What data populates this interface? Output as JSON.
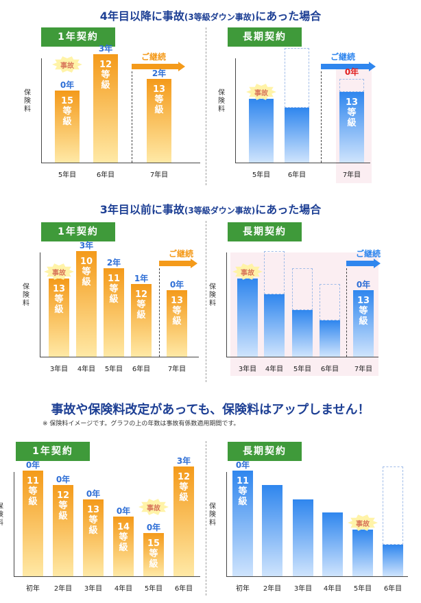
{
  "sections": [
    {
      "title_main": "4年目以降に事故",
      "title_sub": "(3等級ダウン事故)",
      "title_end": "にあった場合",
      "left": {
        "label": "1年契約",
        "ylabel": [
          "保",
          "険",
          "料"
        ],
        "continue_label": "ご継続",
        "x": [
          "5年目",
          "6年目",
          "7年目"
        ],
        "bars": [
          {
            "x": "5年目",
            "value": 0.55,
            "grade": [
              "15",
              "等",
              "級"
            ],
            "years": "0年",
            "accident": true
          },
          {
            "x": "6年目",
            "value": 0.83,
            "grade": [
              "12",
              "等",
              "級"
            ],
            "years": "3年"
          },
          {
            "x": "7年目",
            "value": 0.64,
            "grade": [
              "13",
              "等",
              "級"
            ],
            "years": "2年"
          }
        ]
      },
      "right": {
        "label": "長期契約",
        "ylabel": [
          "保",
          "険",
          "料"
        ],
        "continue_label": "ご継続",
        "x": [
          "5年目",
          "6年目",
          "7年目"
        ],
        "bars": [
          {
            "x": "5年目",
            "value": 0.49,
            "accident": true
          },
          {
            "x": "6年目",
            "value": 0.42,
            "box": 0.88
          },
          {
            "x": "7年目",
            "value": 0.54,
            "box": 0.64,
            "grade": [
              "13",
              "等",
              "級"
            ],
            "years": "0年",
            "years_red": true
          }
        ]
      }
    },
    {
      "title_main": "3年目以前に事故",
      "title_sub": "(3等級ダウン事故)",
      "title_end": "にあった場合",
      "left": {
        "label": "1年契約",
        "ylabel": [
          "保",
          "険",
          "料"
        ],
        "continue_label": "ご継続",
        "x": [
          "3年目",
          "4年目",
          "5年目",
          "6年目",
          "7年目"
        ],
        "bars": [
          {
            "x": "3年目",
            "value": 0.6,
            "grade": [
              "13",
              "等",
              "級"
            ],
            "accident": true
          },
          {
            "x": "4年目",
            "value": 0.81,
            "grade": [
              "10",
              "等",
              "級"
            ],
            "years": "3年"
          },
          {
            "x": "5年目",
            "value": 0.68,
            "grade": [
              "11",
              "等",
              "級"
            ],
            "years": "2年"
          },
          {
            "x": "6年目",
            "value": 0.56,
            "grade": [
              "12",
              "等",
              "級"
            ],
            "years": "1年"
          },
          {
            "x": "7年目",
            "value": 0.51,
            "grade": [
              "13",
              "等",
              "級"
            ],
            "years": "0年"
          }
        ]
      },
      "right": {
        "label": "長期契約",
        "ylabel": [
          "保",
          "険",
          "料"
        ],
        "continue_label": "ご継続",
        "x": [
          "3年目",
          "4年目",
          "5年目",
          "6年目",
          "7年目"
        ],
        "bars": [
          {
            "x": "3年目",
            "value": 0.6,
            "accident": true
          },
          {
            "x": "4年目",
            "value": 0.48,
            "box": 0.81
          },
          {
            "x": "5年目",
            "value": 0.36,
            "box": 0.68
          },
          {
            "x": "6年目",
            "value": 0.28,
            "box": 0.56
          },
          {
            "x": "7年目",
            "value": 0.51,
            "grade": [
              "13",
              "等",
              "級"
            ],
            "years": "0年"
          }
        ]
      }
    },
    {
      "title_main": "事故や保険料改定があっても、保険料はアップしません！",
      "note": "※ 保険料イメージです。グラフの上の年数は事故有係数適用期間です。",
      "left": {
        "label": "1年契約",
        "ylabel": [
          "保",
          "険",
          "料"
        ],
        "x": [
          "初年",
          "2年目",
          "3年目",
          "4年目",
          "5年目",
          "6年目"
        ],
        "bars": [
          {
            "x": "初年",
            "value": 0.81,
            "grade": [
              "11",
              "等",
              "級"
            ],
            "years": "0年"
          },
          {
            "x": "2年目",
            "value": 0.7,
            "grade": [
              "12",
              "等",
              "級"
            ],
            "years": "0年"
          },
          {
            "x": "3年目",
            "value": 0.59,
            "grade": [
              "13",
              "等",
              "級"
            ],
            "years": "0年"
          },
          {
            "x": "4年目",
            "value": 0.46,
            "grade": [
              "14",
              "等",
              "級"
            ],
            "years": "0年"
          },
          {
            "x": "5年目",
            "value": 0.33,
            "grade": [
              "15",
              "等",
              "級"
            ],
            "years": "0年",
            "accident": true
          },
          {
            "x": "6年目",
            "value": 0.84,
            "grade": [
              "12",
              "等",
              "級"
            ],
            "years": "3年"
          }
        ]
      },
      "right": {
        "label": "長期契約",
        "ylabel": [
          "保",
          "険",
          "料"
        ],
        "x": [
          "初年",
          "2年目",
          "3年目",
          "4年目",
          "5年目",
          "6年目"
        ],
        "bars": [
          {
            "x": "初年",
            "value": 0.81,
            "grade": [
              "11",
              "等",
              "級"
            ],
            "years": "0年"
          },
          {
            "x": "2年目",
            "value": 0.7
          },
          {
            "x": "3年目",
            "value": 0.59
          },
          {
            "x": "4年目",
            "value": 0.49
          },
          {
            "x": "5年目",
            "value": 0.36,
            "accident": true
          },
          {
            "x": "6年目",
            "value": 0.24,
            "box": 0.84
          }
        ]
      }
    }
  ],
  "accident_label": "事故",
  "colors": {
    "orange": "#f49a1a",
    "blue": "#2f86ee",
    "green": "#3f9a3a",
    "title": "#1d3f94",
    "red": "#e02020"
  },
  "chart_data": [
    {
      "type": "bar",
      "title": "4年目以降に事故(3等級ダウン事故)にあった場合 1年契約",
      "ylabel": "保険料",
      "categories": [
        "5年目",
        "6年目",
        "7年目"
      ],
      "values": [
        0.55,
        0.83,
        0.64
      ],
      "annotations": [
        "15等級 0年 事故",
        "12等級 3年",
        "13等級 2年 ご継続"
      ]
    },
    {
      "type": "bar",
      "title": "4年目以降に事故(3等級ダウン事故)にあった場合 長期契約",
      "ylabel": "保険料",
      "categories": [
        "5年目",
        "6年目",
        "7年目"
      ],
      "values": [
        0.49,
        0.42,
        0.54
      ],
      "annotations": [
        "事故",
        "",
        "13等級 0年 ご継続"
      ]
    },
    {
      "type": "bar",
      "title": "3年目以前に事故(3等級ダウン事故)にあった場合 1年契約",
      "ylabel": "保険料",
      "categories": [
        "3年目",
        "4年目",
        "5年目",
        "6年目",
        "7年目"
      ],
      "values": [
        0.6,
        0.81,
        0.68,
        0.56,
        0.51
      ],
      "annotations": [
        "13等級 事故",
        "10等級 3年",
        "11等級 2年",
        "12等級 1年",
        "13等級 0年 ご継続"
      ]
    },
    {
      "type": "bar",
      "title": "3年目以前に事故(3等級ダウン事故)にあった場合 長期契約",
      "ylabel": "保険料",
      "categories": [
        "3年目",
        "4年目",
        "5年目",
        "6年目",
        "7年目"
      ],
      "values": [
        0.6,
        0.48,
        0.36,
        0.28,
        0.51
      ],
      "annotations": [
        "事故",
        "",
        "",
        "",
        "13等級 0年 ご継続"
      ]
    },
    {
      "type": "bar",
      "title": "事故や保険料改定があっても、保険料はアップしません！ 1年契約",
      "ylabel": "保険料",
      "categories": [
        "初年",
        "2年目",
        "3年目",
        "4年目",
        "5年目",
        "6年目"
      ],
      "values": [
        0.81,
        0.7,
        0.59,
        0.46,
        0.33,
        0.84
      ],
      "annotations": [
        "11等級 0年",
        "12等級 0年",
        "13等級 0年",
        "14等級 0年",
        "15等級 0年 事故",
        "12等級 3年"
      ]
    },
    {
      "type": "bar",
      "title": "事故や保険料改定があっても、保険料はアップしません！ 長期契約",
      "ylabel": "保険料",
      "categories": [
        "初年",
        "2年目",
        "3年目",
        "4年目",
        "5年目",
        "6年目"
      ],
      "values": [
        0.81,
        0.7,
        0.59,
        0.49,
        0.36,
        0.24
      ],
      "annotations": [
        "11等級 0年",
        "",
        "",
        "",
        "事故",
        ""
      ]
    }
  ]
}
